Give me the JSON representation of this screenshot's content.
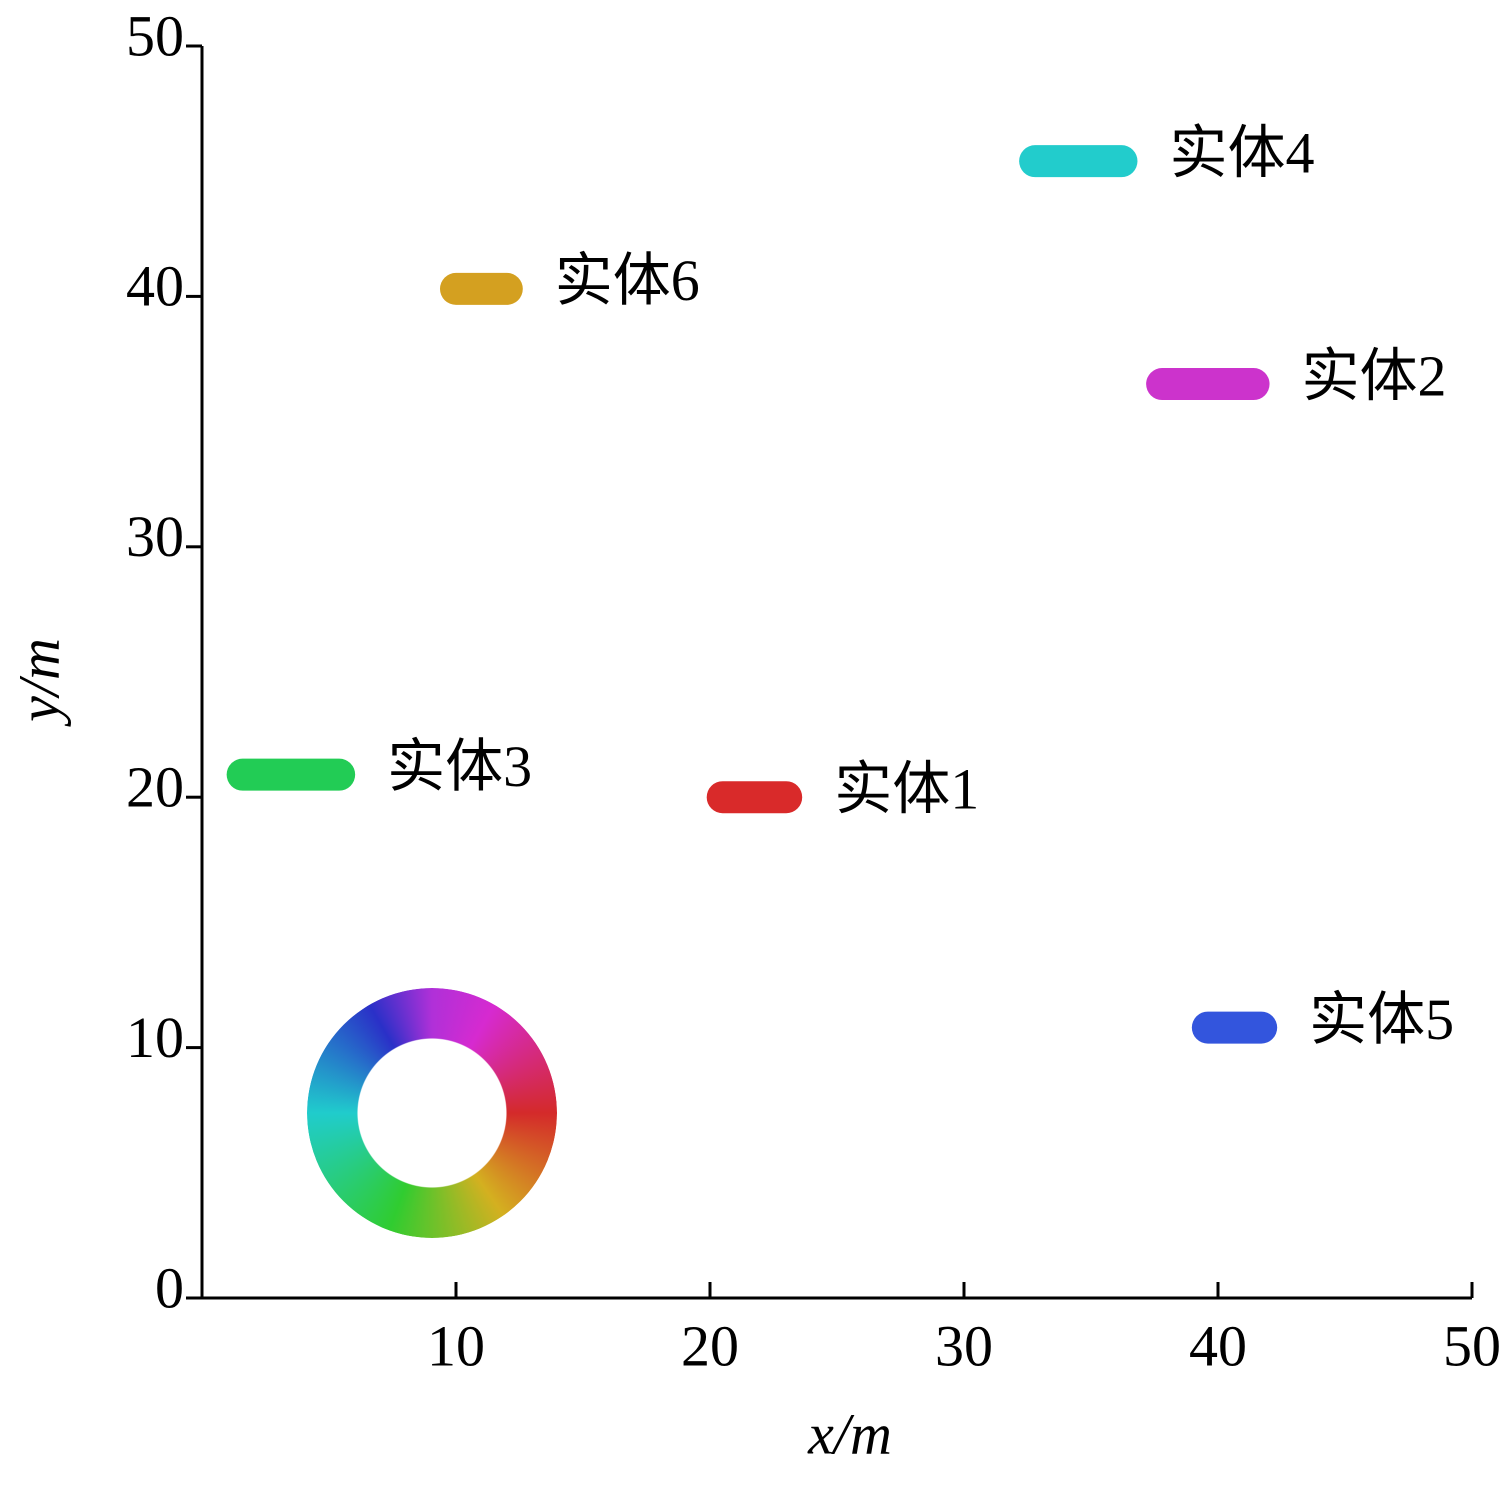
{
  "chart_data": {
    "type": "track",
    "x_label": "x/m",
    "y_label": "y/m",
    "xlim": [
      0,
      50
    ],
    "ylim": [
      0,
      50
    ],
    "xticks": [
      10,
      20,
      30,
      40,
      50
    ],
    "yticks": [
      0,
      10,
      20,
      30,
      40,
      50
    ],
    "series": [
      {
        "name": "实体1",
        "color": "#d92a2a",
        "x": [
          20.5,
          23.0
        ],
        "y": [
          20.0,
          20.0
        ]
      },
      {
        "name": "实体2",
        "color": "#cc33cc",
        "x": [
          37.8,
          41.4
        ],
        "y": [
          36.5,
          36.5
        ]
      },
      {
        "name": "实体3",
        "color": "#22cc55",
        "x": [
          1.6,
          5.4
        ],
        "y": [
          20.9,
          20.9
        ]
      },
      {
        "name": "实体4",
        "color": "#22cccc",
        "x": [
          32.8,
          36.2
        ],
        "y": [
          45.4,
          45.4
        ]
      },
      {
        "name": "实体5",
        "color": "#3355dd",
        "x": [
          39.6,
          41.7
        ],
        "y": [
          10.8,
          10.8
        ]
      },
      {
        "name": "实体6",
        "color": "#d4a020",
        "x": [
          10.0,
          12.0
        ],
        "y": [
          40.3,
          40.3
        ]
      }
    ]
  }
}
